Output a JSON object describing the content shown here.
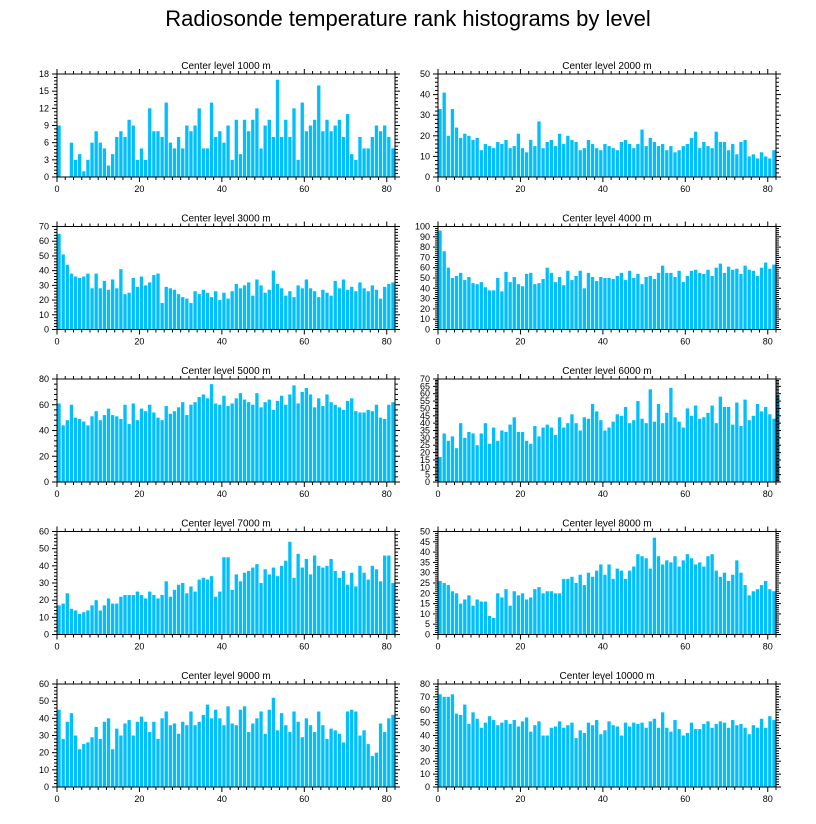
{
  "figure": {
    "title": "Radiosonde temperature rank histograms by level",
    "bar_color": "#00bfff"
  },
  "chart_data": [
    {
      "type": "bar",
      "title": "Center level 1000 m",
      "xlim": [
        0,
        82
      ],
      "ylim": [
        0,
        18
      ],
      "xticks": [
        0,
        20,
        40,
        60,
        80
      ],
      "yticks": [
        0,
        3,
        6,
        9,
        12,
        15,
        18
      ],
      "values": [
        9,
        0,
        0,
        6,
        3,
        4,
        1,
        3,
        6,
        8,
        6,
        5,
        2,
        4,
        7,
        8,
        7,
        10,
        9,
        3,
        5,
        3,
        12,
        8,
        8,
        7,
        13,
        6,
        5,
        7,
        5,
        9,
        8,
        9,
        12,
        5,
        5,
        13,
        7,
        8,
        6,
        9,
        3,
        10,
        4,
        10,
        8,
        10,
        12,
        5,
        9,
        10,
        7,
        17,
        7,
        10,
        7,
        12,
        3,
        13,
        8,
        9,
        10,
        16,
        8,
        10,
        8,
        9,
        10,
        7,
        11,
        4,
        3,
        7,
        5,
        5,
        7,
        9,
        8,
        9,
        7,
        5
      ]
    },
    {
      "type": "bar",
      "title": "Center level 2000 m",
      "xlim": [
        0,
        82
      ],
      "ylim": [
        0,
        50
      ],
      "xticks": [
        0,
        20,
        40,
        60,
        80
      ],
      "yticks": [
        0,
        10,
        20,
        30,
        40,
        50
      ],
      "values": [
        33,
        41,
        20,
        33,
        24,
        19,
        21,
        20,
        18,
        19,
        13,
        16,
        15,
        14,
        17,
        16,
        18,
        14,
        15,
        21,
        14,
        12,
        18,
        15,
        27,
        14,
        17,
        18,
        15,
        21,
        16,
        20,
        18,
        17,
        13,
        14,
        18,
        16,
        14,
        13,
        16,
        15,
        14,
        13,
        17,
        18,
        16,
        14,
        16,
        23,
        15,
        19,
        17,
        15,
        16,
        13,
        15,
        12,
        13,
        15,
        16,
        19,
        22,
        14,
        17,
        15,
        14,
        22,
        17,
        17,
        13,
        16,
        11,
        17,
        18,
        10,
        11,
        9,
        12,
        10,
        9,
        13
      ]
    },
    {
      "type": "bar",
      "title": "Center level 3000 m",
      "xlim": [
        0,
        82
      ],
      "ylim": [
        0,
        70
      ],
      "xticks": [
        0,
        20,
        40,
        60,
        80
      ],
      "yticks": [
        0,
        10,
        20,
        30,
        40,
        50,
        60,
        70
      ],
      "values": [
        65,
        51,
        44,
        38,
        36,
        35,
        36,
        38,
        28,
        38,
        28,
        33,
        27,
        34,
        28,
        41,
        24,
        25,
        35,
        29,
        36,
        30,
        32,
        37,
        38,
        18,
        29,
        28,
        27,
        24,
        22,
        21,
        18,
        26,
        24,
        27,
        25,
        22,
        26,
        20,
        25,
        21,
        26,
        31,
        28,
        30,
        32,
        23,
        34,
        30,
        25,
        27,
        40,
        31,
        28,
        23,
        26,
        22,
        30,
        28,
        34,
        28,
        26,
        22,
        27,
        25,
        23,
        33,
        28,
        34,
        27,
        29,
        26,
        32,
        28,
        26,
        30,
        27,
        21,
        29,
        31,
        32
      ]
    },
    {
      "type": "bar",
      "title": "Center level 4000 m",
      "xlim": [
        0,
        82
      ],
      "ylim": [
        0,
        100
      ],
      "xticks": [
        0,
        20,
        40,
        60,
        80
      ],
      "yticks": [
        0,
        10,
        20,
        30,
        40,
        50,
        60,
        70,
        80,
        90,
        100
      ],
      "values": [
        96,
        76,
        60,
        50,
        52,
        55,
        48,
        51,
        45,
        44,
        46,
        41,
        38,
        38,
        50,
        37,
        56,
        46,
        51,
        44,
        42,
        54,
        55,
        44,
        45,
        49,
        60,
        55,
        46,
        51,
        43,
        57,
        48,
        52,
        57,
        40,
        55,
        51,
        47,
        51,
        50,
        50,
        49,
        52,
        55,
        48,
        57,
        50,
        54,
        44,
        51,
        52,
        49,
        55,
        62,
        55,
        55,
        51,
        57,
        46,
        52,
        57,
        58,
        55,
        54,
        58,
        52,
        60,
        64,
        55,
        61,
        58,
        59,
        54,
        62,
        58,
        57,
        52,
        60,
        65,
        59,
        63
      ]
    },
    {
      "type": "bar",
      "title": "Center level 5000 m",
      "xlim": [
        0,
        82
      ],
      "ylim": [
        0,
        80
      ],
      "xticks": [
        0,
        20,
        40,
        60,
        80
      ],
      "yticks": [
        0,
        20,
        40,
        60,
        80
      ],
      "values": [
        61,
        44,
        48,
        60,
        50,
        49,
        47,
        44,
        51,
        55,
        48,
        52,
        57,
        52,
        51,
        49,
        60,
        45,
        61,
        48,
        57,
        55,
        60,
        54,
        50,
        48,
        59,
        53,
        55,
        58,
        62,
        52,
        60,
        62,
        66,
        68,
        65,
        76,
        61,
        60,
        67,
        59,
        61,
        65,
        69,
        64,
        62,
        60,
        69,
        58,
        62,
        64,
        56,
        63,
        67,
        60,
        68,
        75,
        61,
        70,
        73,
        68,
        58,
        65,
        59,
        68,
        62,
        60,
        58,
        56,
        63,
        65,
        55,
        54,
        54,
        56,
        55,
        60,
        50,
        49,
        60,
        62
      ]
    },
    {
      "type": "bar",
      "title": "Center level 6000 m",
      "xlim": [
        0,
        82
      ],
      "ylim": [
        0,
        70
      ],
      "xticks": [
        0,
        20,
        40,
        60,
        80
      ],
      "yticks": [
        0,
        5,
        10,
        15,
        20,
        25,
        30,
        35,
        40,
        45,
        50,
        55,
        60,
        65,
        70
      ],
      "values": [
        17,
        33,
        28,
        31,
        23,
        40,
        30,
        34,
        33,
        25,
        33,
        40,
        26,
        37,
        28,
        35,
        34,
        39,
        44,
        34,
        34,
        28,
        26,
        38,
        31,
        37,
        39,
        37,
        32,
        44,
        37,
        40,
        46,
        40,
        35,
        44,
        43,
        53,
        48,
        42,
        35,
        37,
        41,
        46,
        45,
        51,
        40,
        42,
        55,
        43,
        40,
        63,
        41,
        53,
        40,
        47,
        64,
        44,
        41,
        37,
        50,
        45,
        52,
        43,
        44,
        47,
        52,
        40,
        58,
        51,
        51,
        39,
        54,
        38,
        56,
        42,
        45,
        53,
        48,
        51,
        46,
        43,
        59
      ]
    },
    {
      "type": "bar",
      "title": "Center level 7000 m",
      "xlim": [
        0,
        82
      ],
      "ylim": [
        0,
        60
      ],
      "xticks": [
        0,
        20,
        40,
        60,
        80
      ],
      "yticks": [
        0,
        10,
        20,
        30,
        40,
        50,
        60
      ],
      "values": [
        17,
        18,
        24,
        15,
        14,
        12,
        13,
        14,
        17,
        20,
        14,
        17,
        21,
        18,
        18,
        22,
        23,
        23,
        23,
        25,
        23,
        21,
        25,
        23,
        21,
        23,
        31,
        22,
        26,
        29,
        30,
        24,
        28,
        25,
        32,
        33,
        32,
        34,
        22,
        25,
        45,
        45,
        26,
        35,
        31,
        36,
        37,
        39,
        41,
        30,
        38,
        35,
        39,
        34,
        40,
        43,
        54,
        33,
        47,
        39,
        44,
        35,
        46,
        40,
        39,
        40,
        44,
        37,
        33,
        37,
        29,
        36,
        28,
        40,
        36,
        32,
        40,
        38,
        31,
        46,
        46,
        30
      ]
    },
    {
      "type": "bar",
      "title": "Center level 8000 m",
      "xlim": [
        0,
        82
      ],
      "ylim": [
        0,
        50
      ],
      "xticks": [
        0,
        20,
        40,
        60,
        80
      ],
      "yticks": [
        0,
        5,
        10,
        15,
        20,
        25,
        30,
        35,
        40,
        45,
        50
      ],
      "values": [
        26,
        25,
        24,
        21,
        20,
        15,
        17,
        19,
        14,
        17,
        16,
        16,
        9,
        8,
        20,
        18,
        22,
        14,
        21,
        19,
        20,
        17,
        18,
        22,
        23,
        20,
        21,
        21,
        20,
        20,
        27,
        27,
        28,
        25,
        29,
        24,
        30,
        28,
        31,
        34,
        29,
        34,
        27,
        32,
        31,
        27,
        31,
        33,
        39,
        38,
        37,
        32,
        47,
        38,
        34,
        36,
        35,
        38,
        33,
        36,
        39,
        37,
        34,
        35,
        33,
        38,
        39,
        31,
        28,
        30,
        26,
        29,
        36,
        30,
        24,
        19,
        21,
        22,
        24,
        26,
        22,
        21
      ]
    },
    {
      "type": "bar",
      "title": "Center level 9000 m",
      "xlim": [
        0,
        82
      ],
      "ylim": [
        0,
        60
      ],
      "xticks": [
        0,
        20,
        40,
        60,
        80
      ],
      "yticks": [
        0,
        10,
        20,
        30,
        40,
        50,
        60
      ],
      "values": [
        45,
        28,
        38,
        43,
        30,
        22,
        25,
        26,
        29,
        35,
        28,
        38,
        40,
        22,
        34,
        30,
        37,
        39,
        30,
        38,
        41,
        38,
        32,
        38,
        28,
        40,
        44,
        36,
        37,
        31,
        38,
        36,
        44,
        36,
        38,
        42,
        48,
        40,
        45,
        40,
        36,
        47,
        37,
        36,
        45,
        47,
        32,
        37,
        40,
        44,
        31,
        45,
        52,
        33,
        43,
        36,
        32,
        44,
        38,
        29,
        40,
        36,
        32,
        44,
        36,
        28,
        34,
        33,
        31,
        26,
        44,
        45,
        44,
        30,
        33,
        25,
        18,
        20,
        37,
        32,
        40,
        42
      ]
    },
    {
      "type": "bar",
      "title": "Center level 10000 m",
      "xlim": [
        0,
        82
      ],
      "ylim": [
        0,
        80
      ],
      "xticks": [
        0,
        20,
        40,
        60,
        80
      ],
      "yticks": [
        0,
        10,
        20,
        30,
        40,
        50,
        60,
        70,
        80
      ],
      "values": [
        72,
        70,
        70,
        72,
        57,
        56,
        64,
        49,
        58,
        53,
        46,
        50,
        55,
        52,
        48,
        50,
        52,
        49,
        52,
        47,
        51,
        54,
        43,
        48,
        51,
        40,
        40,
        46,
        47,
        51,
        46,
        48,
        50,
        38,
        44,
        42,
        50,
        48,
        52,
        41,
        44,
        51,
        48,
        47,
        40,
        50,
        47,
        50,
        49,
        50,
        46,
        51,
        53,
        46,
        58,
        46,
        43,
        52,
        45,
        40,
        42,
        50,
        45,
        45,
        49,
        51,
        46,
        49,
        51,
        50,
        46,
        52,
        48,
        49,
        46,
        41,
        48,
        46,
        53,
        46,
        55,
        52
      ]
    }
  ]
}
